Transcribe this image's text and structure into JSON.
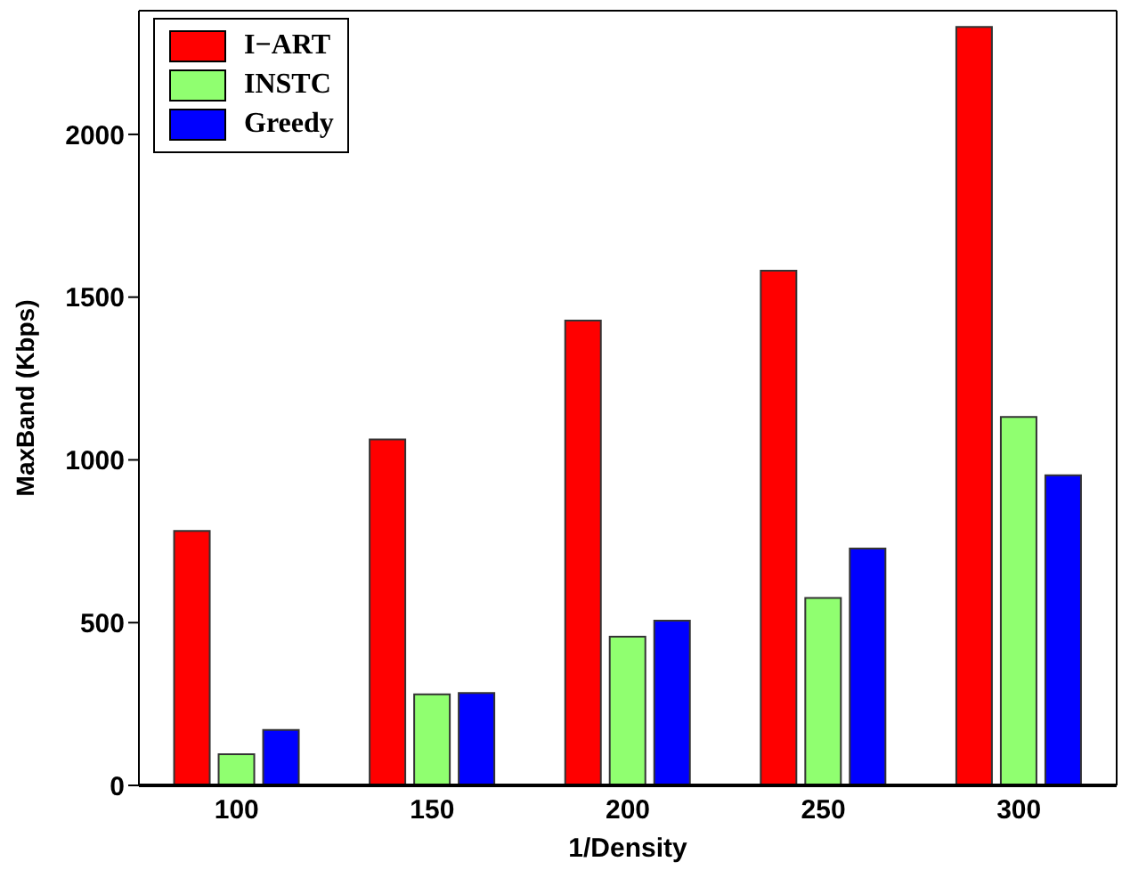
{
  "chart_data": {
    "type": "bar",
    "xlabel": "1/Density",
    "ylabel": "MaxBand (Kbps)",
    "categories": [
      "100",
      "150",
      "200",
      "250",
      "300"
    ],
    "series": [
      {
        "name": "I−ART",
        "color": "#ff0000",
        "values": [
          782,
          1063,
          1428,
          1581,
          2330
        ]
      },
      {
        "name": "INSTC",
        "color": "#90ff70",
        "values": [
          96,
          280,
          457,
          576,
          1132
        ]
      },
      {
        "name": "Greedy",
        "color": "#0000ff",
        "values": [
          170,
          284,
          506,
          728,
          953
        ]
      }
    ],
    "ylim": [
      0,
      2380
    ],
    "yticks": [
      0,
      500,
      1000,
      1500,
      2000
    ],
    "grid": false,
    "legend": "top left"
  }
}
